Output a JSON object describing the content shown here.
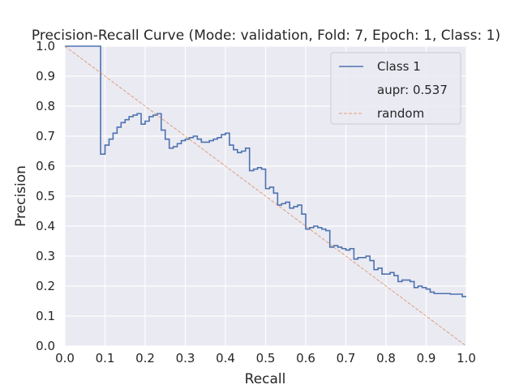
{
  "chart_data": {
    "type": "line",
    "title": "Precision-Recall Curve (Mode: validation, Fold: 7, Epoch: 1, Class: 1)",
    "xlabel": "Recall",
    "ylabel": "Precision",
    "xlim": [
      0.0,
      1.0
    ],
    "ylim": [
      0.0,
      1.0
    ],
    "x_ticks": [
      "0.0",
      "0.1",
      "0.2",
      "0.3",
      "0.4",
      "0.5",
      "0.6",
      "0.7",
      "0.8",
      "0.9",
      "1.0"
    ],
    "y_ticks": [
      "0.0",
      "0.1",
      "0.2",
      "0.3",
      "0.4",
      "0.5",
      "0.6",
      "0.7",
      "0.8",
      "0.9",
      "1.0"
    ],
    "grid": true,
    "legend_position": "top-right",
    "legend": [
      {
        "label": "Class 1",
        "style": "solid",
        "color": "#4c72b0"
      },
      {
        "label": "aupr: 0.537",
        "style": "none",
        "color": ""
      },
      {
        "label": "random",
        "style": "dashed",
        "color": "#dd8452"
      }
    ],
    "series": [
      {
        "name": "Class 1",
        "style": "step",
        "color": "#4c72b0",
        "points": [
          [
            0.0,
            1.0
          ],
          [
            0.089,
            1.0
          ],
          [
            0.089,
            0.64
          ],
          [
            0.1,
            0.64
          ],
          [
            0.1,
            0.67
          ],
          [
            0.11,
            0.67
          ],
          [
            0.11,
            0.69
          ],
          [
            0.12,
            0.69
          ],
          [
            0.12,
            0.71
          ],
          [
            0.13,
            0.71
          ],
          [
            0.13,
            0.73
          ],
          [
            0.14,
            0.73
          ],
          [
            0.14,
            0.745
          ],
          [
            0.15,
            0.745
          ],
          [
            0.15,
            0.755
          ],
          [
            0.16,
            0.755
          ],
          [
            0.16,
            0.765
          ],
          [
            0.17,
            0.765
          ],
          [
            0.17,
            0.77
          ],
          [
            0.18,
            0.77
          ],
          [
            0.18,
            0.775
          ],
          [
            0.19,
            0.775
          ],
          [
            0.19,
            0.74
          ],
          [
            0.2,
            0.74
          ],
          [
            0.2,
            0.75
          ],
          [
            0.21,
            0.75
          ],
          [
            0.21,
            0.765
          ],
          [
            0.22,
            0.765
          ],
          [
            0.22,
            0.77
          ],
          [
            0.23,
            0.77
          ],
          [
            0.23,
            0.775
          ],
          [
            0.24,
            0.775
          ],
          [
            0.24,
            0.72
          ],
          [
            0.25,
            0.72
          ],
          [
            0.25,
            0.69
          ],
          [
            0.26,
            0.69
          ],
          [
            0.26,
            0.66
          ],
          [
            0.27,
            0.66
          ],
          [
            0.27,
            0.665
          ],
          [
            0.28,
            0.665
          ],
          [
            0.28,
            0.675
          ],
          [
            0.29,
            0.675
          ],
          [
            0.29,
            0.685
          ],
          [
            0.3,
            0.685
          ],
          [
            0.3,
            0.69
          ],
          [
            0.31,
            0.69
          ],
          [
            0.31,
            0.695
          ],
          [
            0.32,
            0.695
          ],
          [
            0.32,
            0.7
          ],
          [
            0.33,
            0.7
          ],
          [
            0.33,
            0.69
          ],
          [
            0.34,
            0.69
          ],
          [
            0.34,
            0.68
          ],
          [
            0.36,
            0.68
          ],
          [
            0.36,
            0.685
          ],
          [
            0.37,
            0.685
          ],
          [
            0.37,
            0.69
          ],
          [
            0.38,
            0.69
          ],
          [
            0.38,
            0.695
          ],
          [
            0.39,
            0.695
          ],
          [
            0.39,
            0.705
          ],
          [
            0.4,
            0.705
          ],
          [
            0.4,
            0.71
          ],
          [
            0.41,
            0.71
          ],
          [
            0.41,
            0.67
          ],
          [
            0.42,
            0.67
          ],
          [
            0.42,
            0.655
          ],
          [
            0.43,
            0.655
          ],
          [
            0.43,
            0.645
          ],
          [
            0.44,
            0.645
          ],
          [
            0.44,
            0.65
          ],
          [
            0.45,
            0.65
          ],
          [
            0.45,
            0.66
          ],
          [
            0.46,
            0.66
          ],
          [
            0.46,
            0.585
          ],
          [
            0.47,
            0.585
          ],
          [
            0.47,
            0.59
          ],
          [
            0.48,
            0.59
          ],
          [
            0.48,
            0.595
          ],
          [
            0.49,
            0.595
          ],
          [
            0.49,
            0.59
          ],
          [
            0.5,
            0.59
          ],
          [
            0.5,
            0.525
          ],
          [
            0.51,
            0.525
          ],
          [
            0.51,
            0.53
          ],
          [
            0.52,
            0.53
          ],
          [
            0.52,
            0.51
          ],
          [
            0.53,
            0.51
          ],
          [
            0.53,
            0.47
          ],
          [
            0.54,
            0.47
          ],
          [
            0.54,
            0.475
          ],
          [
            0.55,
            0.475
          ],
          [
            0.55,
            0.48
          ],
          [
            0.56,
            0.48
          ],
          [
            0.56,
            0.46
          ],
          [
            0.57,
            0.46
          ],
          [
            0.57,
            0.465
          ],
          [
            0.58,
            0.465
          ],
          [
            0.58,
            0.47
          ],
          [
            0.59,
            0.47
          ],
          [
            0.59,
            0.44
          ],
          [
            0.6,
            0.44
          ],
          [
            0.6,
            0.39
          ],
          [
            0.61,
            0.39
          ],
          [
            0.61,
            0.395
          ],
          [
            0.62,
            0.395
          ],
          [
            0.62,
            0.4
          ],
          [
            0.63,
            0.4
          ],
          [
            0.63,
            0.395
          ],
          [
            0.64,
            0.395
          ],
          [
            0.64,
            0.39
          ],
          [
            0.65,
            0.39
          ],
          [
            0.65,
            0.385
          ],
          [
            0.66,
            0.385
          ],
          [
            0.66,
            0.33
          ],
          [
            0.67,
            0.33
          ],
          [
            0.67,
            0.335
          ],
          [
            0.68,
            0.335
          ],
          [
            0.68,
            0.33
          ],
          [
            0.69,
            0.33
          ],
          [
            0.69,
            0.325
          ],
          [
            0.7,
            0.325
          ],
          [
            0.7,
            0.32
          ],
          [
            0.71,
            0.32
          ],
          [
            0.71,
            0.325
          ],
          [
            0.72,
            0.325
          ],
          [
            0.72,
            0.29
          ],
          [
            0.73,
            0.29
          ],
          [
            0.73,
            0.295
          ],
          [
            0.75,
            0.295
          ],
          [
            0.75,
            0.3
          ],
          [
            0.76,
            0.3
          ],
          [
            0.76,
            0.285
          ],
          [
            0.77,
            0.285
          ],
          [
            0.77,
            0.255
          ],
          [
            0.78,
            0.255
          ],
          [
            0.78,
            0.26
          ],
          [
            0.79,
            0.26
          ],
          [
            0.79,
            0.24
          ],
          [
            0.81,
            0.24
          ],
          [
            0.81,
            0.245
          ],
          [
            0.82,
            0.245
          ],
          [
            0.82,
            0.235
          ],
          [
            0.83,
            0.235
          ],
          [
            0.83,
            0.215
          ],
          [
            0.84,
            0.215
          ],
          [
            0.84,
            0.22
          ],
          [
            0.86,
            0.22
          ],
          [
            0.86,
            0.215
          ],
          [
            0.87,
            0.215
          ],
          [
            0.87,
            0.195
          ],
          [
            0.88,
            0.195
          ],
          [
            0.88,
            0.2
          ],
          [
            0.89,
            0.2
          ],
          [
            0.89,
            0.195
          ],
          [
            0.9,
            0.195
          ],
          [
            0.9,
            0.19
          ],
          [
            0.91,
            0.19
          ],
          [
            0.91,
            0.18
          ],
          [
            0.92,
            0.18
          ],
          [
            0.92,
            0.175
          ],
          [
            0.96,
            0.175
          ],
          [
            0.96,
            0.173
          ],
          [
            0.99,
            0.173
          ],
          [
            0.99,
            0.165
          ],
          [
            1.0,
            0.165
          ]
        ]
      },
      {
        "name": "random",
        "style": "dashed",
        "color": "#dd8452",
        "points": [
          [
            0.0,
            1.0
          ],
          [
            1.0,
            0.0
          ]
        ]
      }
    ]
  }
}
